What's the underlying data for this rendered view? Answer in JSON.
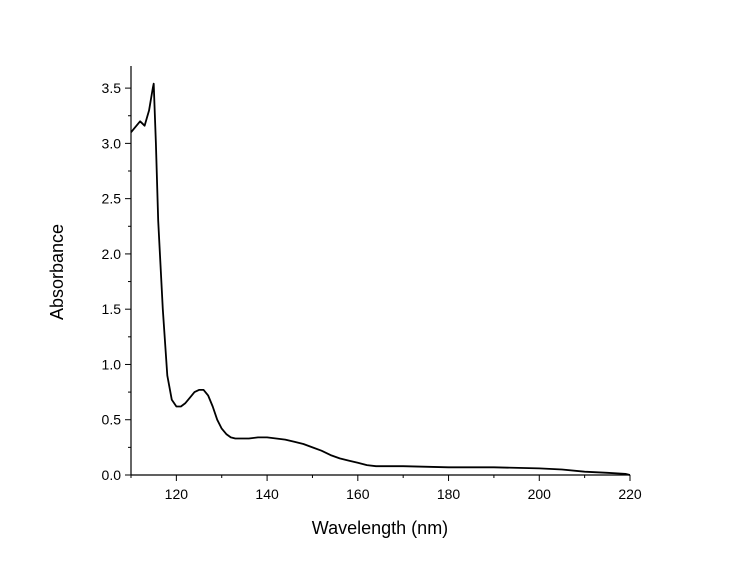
{
  "chart_data": {
    "type": "line",
    "title": "",
    "xlabel": "Wavelength (nm)",
    "ylabel": "Absorbance",
    "xlim": [
      110,
      220
    ],
    "ylim": [
      0,
      3.7
    ],
    "xticks": [
      120,
      140,
      160,
      180,
      200,
      220
    ],
    "yticks": [
      0.0,
      0.5,
      1.0,
      1.5,
      2.0,
      2.5,
      3.0,
      3.5
    ],
    "xtick_labels": [
      "120",
      "140",
      "160",
      "180",
      "200",
      "220"
    ],
    "ytick_labels": [
      "0.0",
      "0.5",
      "1.0",
      "1.5",
      "2.0",
      "2.5",
      "3.0",
      "3.5"
    ],
    "grid": false,
    "legend": "none",
    "line_color": "#000000",
    "series": [
      {
        "x": [
          110,
          112,
          113,
          114,
          114.8,
          115,
          115.5,
          116,
          117,
          118,
          119,
          120,
          121,
          122,
          123,
          124,
          125,
          126,
          127,
          128,
          129,
          130,
          131,
          132,
          133,
          134,
          136,
          138,
          140,
          142,
          144,
          146,
          148,
          150,
          152,
          154,
          156,
          158,
          160,
          162,
          164,
          170,
          180,
          190,
          200,
          205,
          210,
          215,
          219,
          220
        ],
        "y": [
          3.1,
          3.2,
          3.16,
          3.3,
          3.5,
          3.54,
          3.0,
          2.3,
          1.5,
          0.9,
          0.68,
          0.62,
          0.62,
          0.65,
          0.7,
          0.75,
          0.77,
          0.77,
          0.72,
          0.62,
          0.5,
          0.42,
          0.37,
          0.34,
          0.33,
          0.33,
          0.33,
          0.34,
          0.34,
          0.33,
          0.32,
          0.3,
          0.28,
          0.25,
          0.22,
          0.18,
          0.15,
          0.13,
          0.11,
          0.09,
          0.08,
          0.08,
          0.07,
          0.07,
          0.06,
          0.05,
          0.03,
          0.02,
          0.01,
          0.0
        ]
      }
    ]
  }
}
